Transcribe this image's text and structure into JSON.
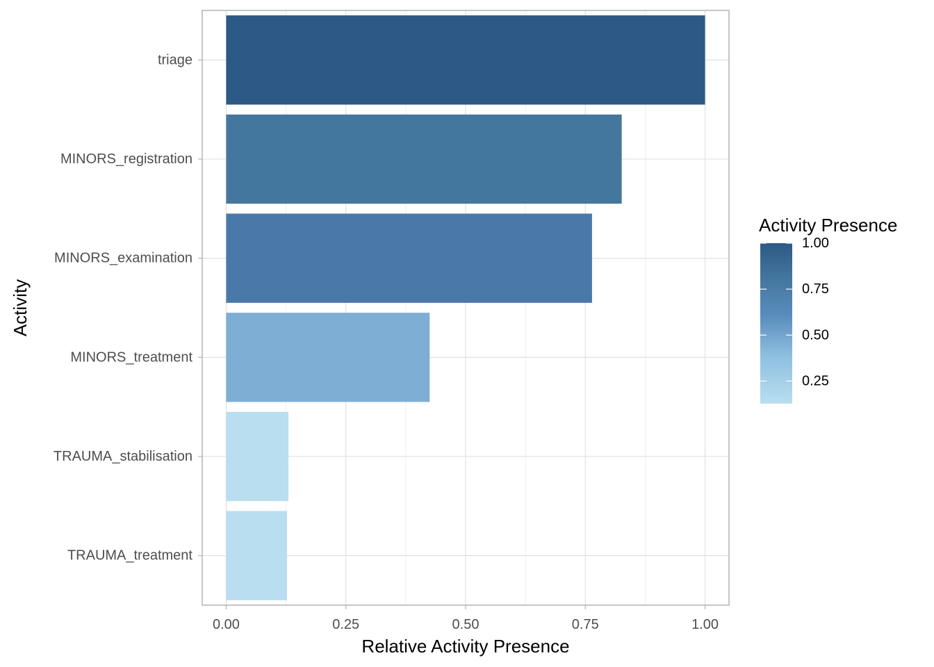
{
  "chart_data": {
    "type": "bar",
    "orientation": "horizontal",
    "categories": [
      "triage",
      "MINORS_registration",
      "MINORS_examination",
      "MINORS_treatment",
      "TRAUMA_stabilisation",
      "TRAUMA_treatment"
    ],
    "values": [
      1.0,
      0.826,
      0.764,
      0.425,
      0.13,
      0.127
    ],
    "xlabel": "Relative Activity Presence",
    "ylabel": "Activity",
    "xlim": [
      -0.05,
      1.05
    ],
    "x_ticks": [
      "0.00",
      "0.25",
      "0.50",
      "0.75",
      "1.00"
    ],
    "x_tick_values": [
      0,
      0.25,
      0.5,
      0.75,
      1.0
    ],
    "grid": true,
    "legend": {
      "title": "Activity Presence",
      "position": "right",
      "type": "colorbar",
      "labels": [
        "1.00",
        "0.75",
        "0.50",
        "0.25"
      ],
      "label_values": [
        1.0,
        0.75,
        0.5,
        0.25
      ],
      "range": [
        0.127,
        1.0
      ],
      "low_color": "#b9def0",
      "high_color": "#2c5985"
    },
    "bar_colors": [
      "#2c5985",
      "#44779e",
      "#4a79a9",
      "#7eaed4",
      "#b9def0",
      "#b9def0"
    ]
  }
}
